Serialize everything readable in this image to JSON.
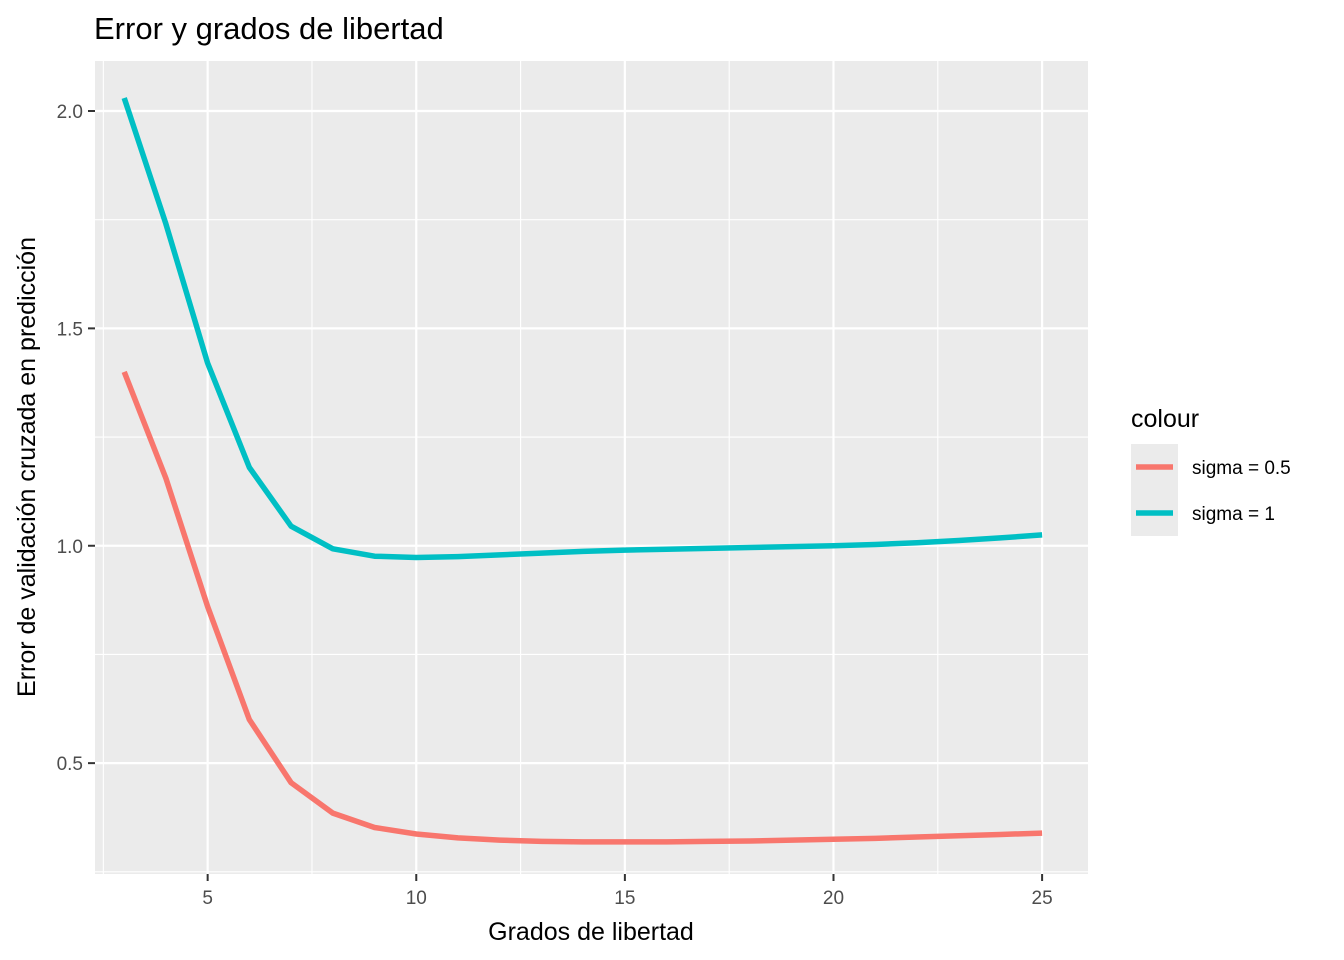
{
  "chart_data": {
    "type": "line",
    "title": "Error y grados de libertad",
    "xlabel": "Grados de libertad",
    "ylabel": "Error de validación cruzada en predicción",
    "xlim": [
      2.3,
      26.1
    ],
    "ylim": [
      0.245,
      2.115
    ],
    "x_ticks": [
      5,
      10,
      15,
      20,
      25
    ],
    "x_tick_labels": [
      "5",
      "10",
      "15",
      "20",
      "25"
    ],
    "y_ticks": [
      0.5,
      1.0,
      1.5,
      2.0
    ],
    "y_tick_labels": [
      "0.5",
      "1.0",
      "1.5",
      "2.0"
    ],
    "grid": true,
    "legend": {
      "title": "colour",
      "position": "right"
    },
    "x": [
      3,
      4,
      5,
      6,
      7,
      8,
      9,
      10,
      11,
      12,
      13,
      14,
      15,
      16,
      17,
      18,
      19,
      20,
      21,
      22,
      23,
      24,
      25
    ],
    "series": [
      {
        "name": "sigma = 0.5",
        "color": "#F8766D",
        "values": [
          1.4,
          1.155,
          0.86,
          0.6,
          0.455,
          0.385,
          0.352,
          0.337,
          0.328,
          0.323,
          0.32,
          0.319,
          0.319,
          0.319,
          0.32,
          0.321,
          0.323,
          0.325,
          0.327,
          0.33,
          0.333,
          0.336,
          0.339
        ]
      },
      {
        "name": "sigma = 1",
        "color": "#00BFC4",
        "values": [
          2.03,
          1.74,
          1.42,
          1.18,
          1.045,
          0.993,
          0.976,
          0.973,
          0.975,
          0.979,
          0.983,
          0.987,
          0.99,
          0.992,
          0.994,
          0.996,
          0.998,
          1.0,
          1.003,
          1.007,
          1.012,
          1.018,
          1.025
        ]
      }
    ]
  }
}
